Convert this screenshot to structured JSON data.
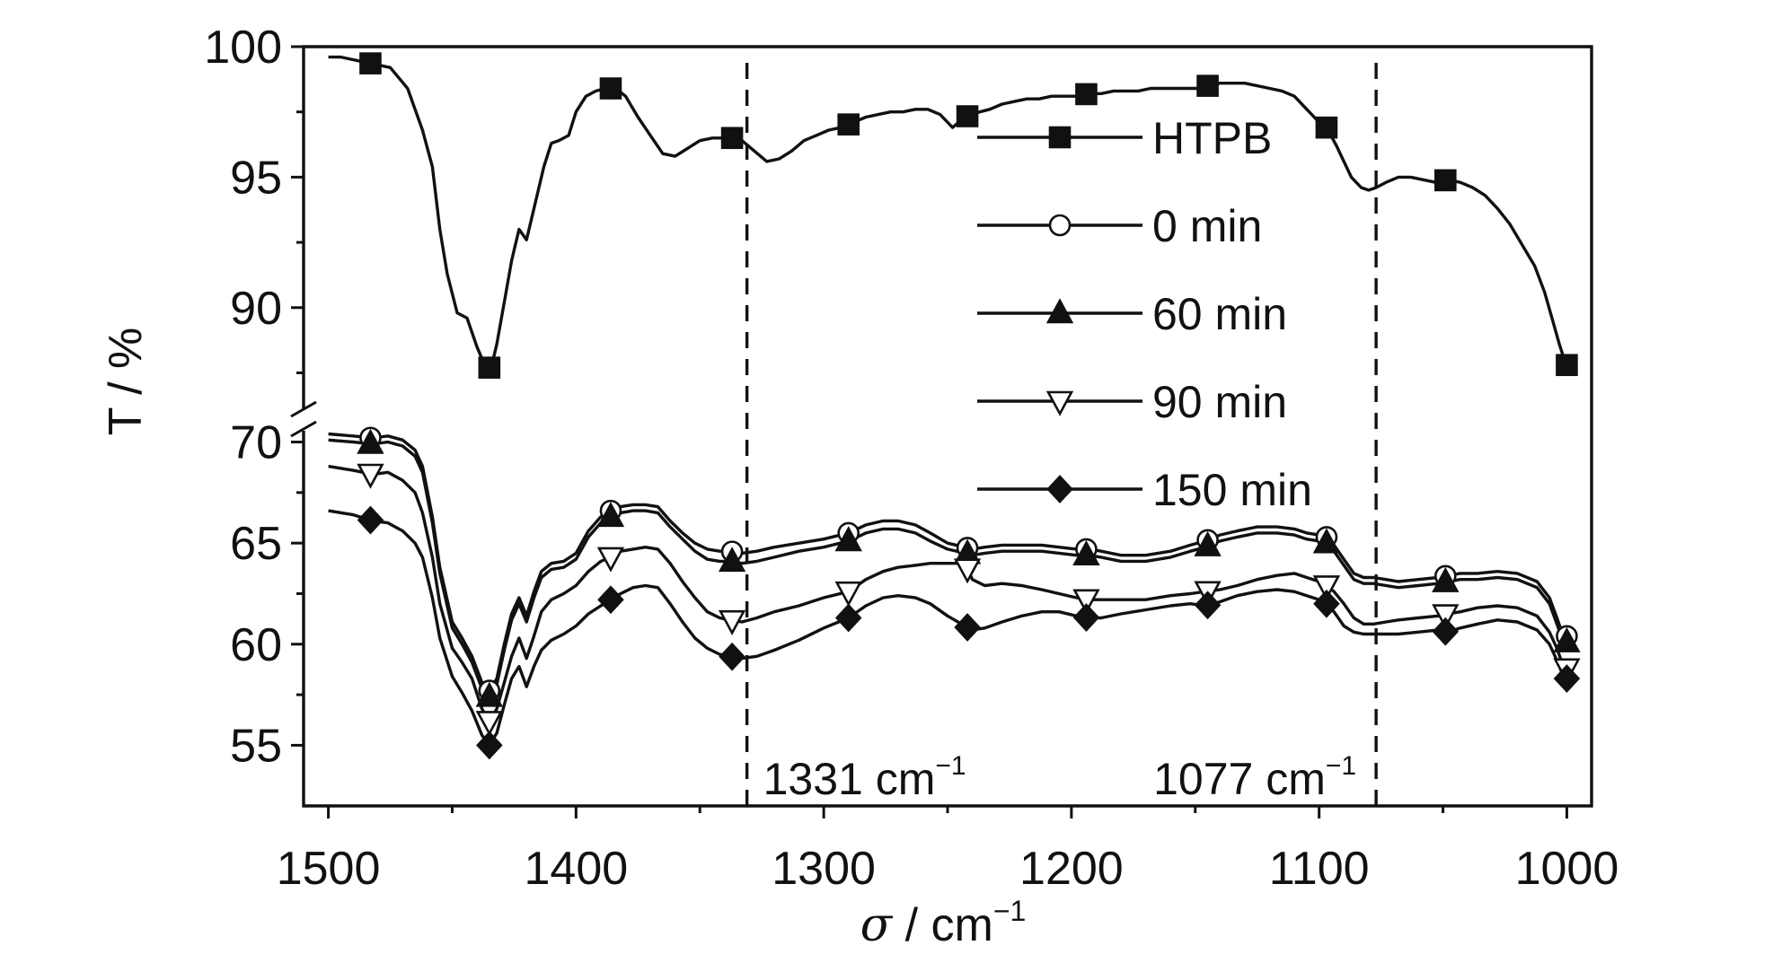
{
  "chart_data": {
    "type": "line",
    "title": "",
    "xlabel_symbol": "σ",
    "xlabel_unit": " / cm",
    "xlabel_sup": "−1",
    "ylabel": "T / %",
    "xlim": [
      1510,
      990
    ],
    "x_ticks": [
      1500,
      1400,
      1300,
      1200,
      1100,
      1000
    ],
    "x_tick_labels": [
      "1500",
      "1400",
      "1300",
      "1200",
      "1100",
      "1000"
    ],
    "y_upper_range": [
      87,
      100
    ],
    "y_upper_ticks": [
      100,
      95,
      90
    ],
    "y_upper_tick_labels": [
      "100",
      "95",
      "90"
    ],
    "y_lower_range": [
      52,
      71
    ],
    "y_lower_ticks": [
      70,
      65,
      60,
      55
    ],
    "y_lower_tick_labels": [
      "70",
      "65",
      "60",
      "55"
    ],
    "axis_break": true,
    "grid": false,
    "legend_position": "upper-center-right",
    "annotations": [
      {
        "x": 1331,
        "label": "1331 cm",
        "sup": "−1"
      },
      {
        "x": 1077,
        "label": "1077 cm",
        "sup": "−1"
      }
    ],
    "series": [
      {
        "name": "HTPB",
        "marker": "square",
        "panel": "upper",
        "x": [
          1500,
          1495,
          1485,
          1475,
          1468,
          1462,
          1458,
          1455,
          1452,
          1448,
          1444,
          1440,
          1436,
          1434,
          1432,
          1429,
          1426,
          1423,
          1420,
          1417,
          1413,
          1410,
          1407,
          1403,
          1400,
          1396,
          1392,
          1388,
          1384,
          1380,
          1375,
          1370,
          1365,
          1360,
          1355,
          1350,
          1345,
          1340,
          1337,
          1333,
          1328,
          1323,
          1318,
          1313,
          1308,
          1303,
          1298,
          1293,
          1288,
          1283,
          1278,
          1273,
          1268,
          1263,
          1258,
          1253,
          1248,
          1243,
          1240,
          1237,
          1233,
          1228,
          1223,
          1218,
          1213,
          1208,
          1203,
          1198,
          1193,
          1188,
          1183,
          1178,
          1173,
          1168,
          1163,
          1158,
          1153,
          1148,
          1145,
          1140,
          1135,
          1130,
          1125,
          1120,
          1115,
          1110,
          1105,
          1100,
          1097,
          1093,
          1090,
          1087,
          1083,
          1080,
          1077,
          1073,
          1068,
          1063,
          1058,
          1053,
          1048,
          1043,
          1038,
          1033,
          1028,
          1023,
          1018,
          1013,
          1009,
          1006,
          1003,
          1001,
          1000
        ],
        "y": [
          99.6,
          99.6,
          99.4,
          99.2,
          98.4,
          96.8,
          95.4,
          93.0,
          91.3,
          89.8,
          89.6,
          88.5,
          87.6,
          87.8,
          88.6,
          90.2,
          91.8,
          93.0,
          92.6,
          93.8,
          95.4,
          96.3,
          96.4,
          96.6,
          97.5,
          98.1,
          98.3,
          98.4,
          98.4,
          98.1,
          97.3,
          96.6,
          95.9,
          95.8,
          96.1,
          96.4,
          96.5,
          96.5,
          96.5,
          96.4,
          96.0,
          95.6,
          95.7,
          96.0,
          96.4,
          96.6,
          96.8,
          96.9,
          97.1,
          97.3,
          97.4,
          97.5,
          97.5,
          97.6,
          97.6,
          97.4,
          96.9,
          97.3,
          97.4,
          97.5,
          97.6,
          97.8,
          97.9,
          98.0,
          98.0,
          98.1,
          98.1,
          98.1,
          98.2,
          98.2,
          98.3,
          98.3,
          98.3,
          98.4,
          98.4,
          98.4,
          98.4,
          98.4,
          98.5,
          98.6,
          98.6,
          98.6,
          98.5,
          98.4,
          98.3,
          98.1,
          97.6,
          97.1,
          96.9,
          96.2,
          95.6,
          95.0,
          94.6,
          94.5,
          94.6,
          94.8,
          95.0,
          95.0,
          94.9,
          94.8,
          94.9,
          94.8,
          94.6,
          94.3,
          93.8,
          93.2,
          92.4,
          91.6,
          90.6,
          89.6,
          88.6,
          88.0,
          87.8
        ]
      },
      {
        "name": "0 min",
        "marker": "circle-open",
        "panel": "lower",
        "x": [
          1500,
          1490,
          1482,
          1476,
          1470,
          1465,
          1462,
          1458,
          1455,
          1450,
          1446,
          1442,
          1438,
          1435,
          1432,
          1429,
          1426,
          1423,
          1420,
          1417,
          1414,
          1410,
          1405,
          1400,
          1395,
          1390,
          1386,
          1382,
          1377,
          1372,
          1367,
          1362,
          1357,
          1352,
          1347,
          1342,
          1338,
          1333,
          1327,
          1320,
          1310,
          1300,
          1290,
          1283,
          1276,
          1270,
          1263,
          1257,
          1250,
          1243,
          1240,
          1235,
          1228,
          1220,
          1212,
          1205,
          1198,
          1193,
          1188,
          1180,
          1170,
          1160,
          1152,
          1146,
          1140,
          1133,
          1125,
          1117,
          1110,
          1105,
          1100,
          1097,
          1094,
          1090,
          1086,
          1082,
          1078,
          1073,
          1068,
          1060,
          1052,
          1048,
          1043,
          1036,
          1028,
          1020,
          1012,
          1007,
          1004,
          1002,
          1000
        ],
        "y": [
          70.4,
          70.3,
          70.2,
          70.3,
          70.1,
          69.6,
          68.8,
          66.3,
          63.8,
          61.1,
          60.3,
          59.4,
          58.1,
          57.7,
          58.3,
          60.0,
          61.5,
          62.3,
          61.4,
          62.6,
          63.6,
          64.0,
          64.1,
          64.5,
          65.6,
          66.3,
          66.6,
          66.8,
          66.9,
          66.9,
          66.8,
          66.1,
          65.5,
          65.0,
          64.7,
          64.6,
          64.6,
          64.5,
          64.6,
          64.8,
          65.0,
          65.2,
          65.5,
          65.9,
          66.1,
          66.1,
          65.9,
          65.5,
          65.0,
          64.8,
          64.7,
          64.8,
          64.9,
          64.9,
          64.9,
          64.8,
          64.7,
          64.7,
          64.6,
          64.4,
          64.4,
          64.6,
          64.9,
          65.1,
          65.4,
          65.6,
          65.8,
          65.8,
          65.7,
          65.5,
          65.4,
          65.3,
          64.9,
          64.2,
          63.5,
          63.3,
          63.3,
          63.2,
          63.1,
          63.2,
          63.3,
          63.4,
          63.5,
          63.5,
          63.6,
          63.5,
          63.1,
          62.3,
          61.3,
          60.6,
          60.4
        ]
      },
      {
        "name": "60 min",
        "marker": "triangle-up",
        "panel": "lower",
        "x": [
          1500,
          1490,
          1482,
          1476,
          1470,
          1465,
          1462,
          1458,
          1455,
          1450,
          1446,
          1442,
          1438,
          1435,
          1432,
          1429,
          1426,
          1423,
          1420,
          1417,
          1414,
          1410,
          1405,
          1400,
          1395,
          1390,
          1386,
          1382,
          1377,
          1372,
          1367,
          1362,
          1357,
          1352,
          1347,
          1342,
          1338,
          1333,
          1327,
          1320,
          1310,
          1300,
          1290,
          1283,
          1276,
          1270,
          1263,
          1257,
          1250,
          1243,
          1240,
          1235,
          1228,
          1220,
          1212,
          1205,
          1198,
          1193,
          1188,
          1180,
          1170,
          1160,
          1152,
          1146,
          1140,
          1133,
          1125,
          1117,
          1110,
          1105,
          1100,
          1097,
          1094,
          1090,
          1086,
          1082,
          1078,
          1073,
          1068,
          1060,
          1052,
          1048,
          1043,
          1036,
          1028,
          1020,
          1012,
          1007,
          1004,
          1002,
          1000
        ],
        "y": [
          70.1,
          70.0,
          69.9,
          70.0,
          69.8,
          69.3,
          68.5,
          66.0,
          63.5,
          60.8,
          60.0,
          59.1,
          57.8,
          57.4,
          58.0,
          59.7,
          61.2,
          62.0,
          61.1,
          62.3,
          63.3,
          63.7,
          63.8,
          64.2,
          65.3,
          66.0,
          66.3,
          66.5,
          66.6,
          66.6,
          66.5,
          65.8,
          65.2,
          64.6,
          64.2,
          64.1,
          64.1,
          64.0,
          64.1,
          64.3,
          64.6,
          64.8,
          65.1,
          65.5,
          65.7,
          65.7,
          65.5,
          65.1,
          64.7,
          64.5,
          64.4,
          64.5,
          64.6,
          64.6,
          64.6,
          64.5,
          64.4,
          64.4,
          64.3,
          64.1,
          64.1,
          64.3,
          64.6,
          64.8,
          65.1,
          65.3,
          65.5,
          65.5,
          65.4,
          65.2,
          65.1,
          65.0,
          64.6,
          63.9,
          63.2,
          63.0,
          63.0,
          62.9,
          62.8,
          62.9,
          63.0,
          63.1,
          63.2,
          63.2,
          63.3,
          63.2,
          62.8,
          62.0,
          61.0,
          60.3,
          60.1
        ]
      },
      {
        "name": "90 min",
        "marker": "triangle-down-open",
        "panel": "lower",
        "x": [
          1500,
          1490,
          1482,
          1476,
          1470,
          1465,
          1462,
          1458,
          1455,
          1450,
          1446,
          1442,
          1438,
          1435,
          1432,
          1429,
          1426,
          1423,
          1420,
          1417,
          1414,
          1410,
          1405,
          1400,
          1395,
          1390,
          1386,
          1382,
          1377,
          1372,
          1367,
          1362,
          1357,
          1352,
          1347,
          1342,
          1338,
          1333,
          1327,
          1320,
          1310,
          1300,
          1290,
          1283,
          1276,
          1270,
          1263,
          1257,
          1250,
          1243,
          1240,
          1235,
          1228,
          1220,
          1212,
          1205,
          1198,
          1193,
          1188,
          1180,
          1170,
          1160,
          1152,
          1146,
          1140,
          1133,
          1125,
          1117,
          1110,
          1105,
          1100,
          1097,
          1094,
          1090,
          1086,
          1082,
          1078,
          1073,
          1068,
          1060,
          1052,
          1048,
          1043,
          1036,
          1028,
          1020,
          1012,
          1007,
          1004,
          1002,
          1000
        ],
        "y": [
          68.8,
          68.6,
          68.4,
          68.5,
          68.1,
          67.5,
          66.5,
          64.3,
          62.0,
          59.8,
          59.1,
          58.3,
          56.8,
          56.2,
          56.8,
          58.1,
          59.4,
          60.3,
          59.3,
          60.4,
          61.6,
          62.2,
          62.5,
          62.9,
          63.6,
          64.1,
          64.3,
          64.6,
          64.7,
          64.8,
          64.7,
          64.0,
          63.1,
          62.3,
          61.6,
          61.3,
          61.2,
          61.1,
          61.3,
          61.6,
          61.9,
          62.3,
          62.6,
          63.2,
          63.6,
          63.8,
          63.9,
          64.0,
          64.0,
          64.0,
          63.2,
          62.9,
          63.0,
          62.9,
          62.7,
          62.5,
          62.3,
          62.2,
          62.2,
          62.2,
          62.2,
          62.4,
          62.5,
          62.6,
          62.7,
          62.9,
          63.2,
          63.4,
          63.5,
          63.3,
          63.1,
          62.9,
          62.6,
          62.0,
          61.3,
          61.0,
          61.0,
          61.1,
          61.2,
          61.3,
          61.4,
          61.5,
          61.6,
          61.8,
          61.9,
          61.8,
          61.4,
          60.6,
          59.8,
          59.1,
          58.8
        ]
      },
      {
        "name": "150 min",
        "marker": "diamond",
        "panel": "lower",
        "x": [
          1500,
          1490,
          1482,
          1476,
          1470,
          1465,
          1462,
          1458,
          1455,
          1450,
          1446,
          1442,
          1438,
          1435,
          1432,
          1429,
          1426,
          1423,
          1420,
          1417,
          1414,
          1410,
          1405,
          1400,
          1395,
          1390,
          1386,
          1382,
          1377,
          1372,
          1367,
          1362,
          1357,
          1352,
          1347,
          1342,
          1338,
          1333,
          1327,
          1320,
          1310,
          1300,
          1290,
          1283,
          1276,
          1270,
          1263,
          1257,
          1250,
          1243,
          1240,
          1235,
          1228,
          1220,
          1212,
          1205,
          1198,
          1193,
          1188,
          1180,
          1170,
          1160,
          1152,
          1146,
          1140,
          1133,
          1125,
          1117,
          1110,
          1105,
          1100,
          1097,
          1094,
          1090,
          1086,
          1082,
          1078,
          1073,
          1068,
          1060,
          1052,
          1048,
          1043,
          1036,
          1028,
          1020,
          1012,
          1007,
          1004,
          1002,
          1000
        ],
        "y": [
          66.6,
          66.4,
          66.1,
          66.0,
          65.6,
          65.0,
          64.3,
          62.3,
          60.3,
          58.4,
          57.6,
          56.7,
          55.5,
          55.0,
          55.6,
          57.0,
          58.3,
          58.9,
          57.9,
          58.9,
          59.7,
          60.2,
          60.5,
          60.9,
          61.5,
          61.9,
          62.2,
          62.5,
          62.8,
          62.9,
          62.8,
          62.0,
          61.1,
          60.3,
          59.8,
          59.5,
          59.4,
          59.3,
          59.4,
          59.7,
          60.2,
          60.8,
          61.3,
          61.9,
          62.3,
          62.4,
          62.3,
          62.0,
          61.4,
          60.9,
          60.7,
          60.8,
          61.1,
          61.4,
          61.6,
          61.6,
          61.4,
          61.3,
          61.3,
          61.5,
          61.7,
          61.9,
          62.0,
          61.9,
          62.1,
          62.4,
          62.6,
          62.7,
          62.6,
          62.4,
          62.2,
          62.0,
          61.6,
          60.9,
          60.6,
          60.5,
          60.5,
          60.5,
          60.5,
          60.6,
          60.7,
          60.6,
          60.8,
          61.0,
          61.2,
          61.1,
          60.7,
          60.0,
          59.2,
          58.6,
          58.3
        ]
      }
    ],
    "markers": {
      "HTPB": [
        1483,
        1435,
        1386,
        1337,
        1290,
        1242,
        1194,
        1145,
        1097,
        1049,
        1000
      ],
      "0 min": [
        1483,
        1435,
        1386,
        1337,
        1290,
        1242,
        1194,
        1145,
        1097,
        1049,
        1000
      ],
      "60 min": [
        1483,
        1435,
        1386,
        1337,
        1290,
        1242,
        1194,
        1145,
        1097,
        1049,
        1000
      ],
      "90 min": [
        1483,
        1435,
        1386,
        1337,
        1290,
        1242,
        1194,
        1145,
        1097,
        1049,
        1000
      ],
      "150 min": [
        1483,
        1435,
        1386,
        1337,
        1290,
        1242,
        1194,
        1145,
        1097,
        1049,
        1000
      ]
    }
  }
}
